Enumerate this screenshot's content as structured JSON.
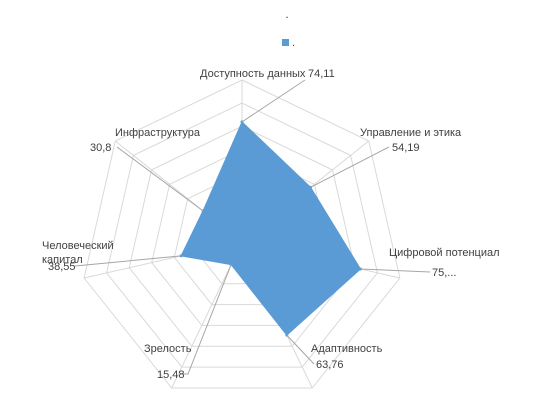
{
  "chart_data": {
    "type": "radar",
    "title": ".",
    "legend": {
      "position": "top",
      "entries": [
        "."
      ]
    },
    "series": [
      {
        "name": ".",
        "color": "#5b9bd5",
        "values": [
          74.11,
          54.19,
          75.0,
          63.76,
          15.48,
          38.55,
          30.8
        ]
      }
    ],
    "categories": [
      "Доступность данных",
      "Управление и этика",
      "Цифровой потенциал",
      "Адаптивность",
      "Зрелость",
      "Человеческий капитал",
      "Инфраструктура"
    ],
    "data_labels": [
      "74,11",
      "54,19",
      "75,...",
      "63,76",
      "15,48",
      "38,55",
      "30,8"
    ],
    "rmax": 100,
    "grid_levels": 7,
    "grid": true
  },
  "colors": {
    "grid": "#d9d9d9",
    "leader": "#a6a6a6",
    "text": "#404040"
  }
}
